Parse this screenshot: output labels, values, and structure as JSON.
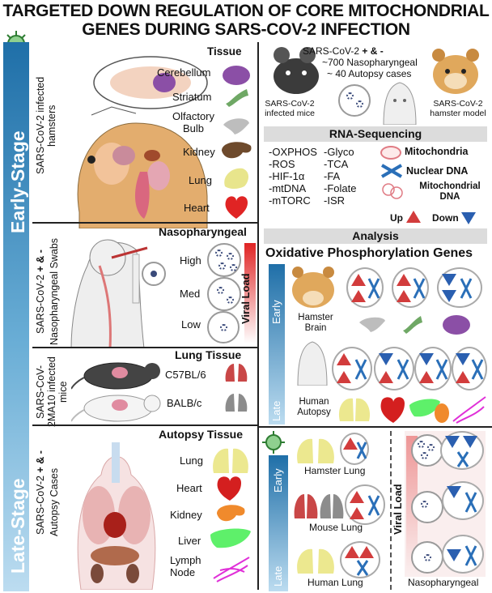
{
  "title": {
    "line1": "TARGETED DOWN REGULATION OF CORE MITOCHONDRIAL",
    "line2": "GENES DURING SARS-COV-2 INFECTION"
  },
  "stages": {
    "early": "Early-Stage",
    "late": "Late-Stage"
  },
  "left": {
    "hamsters": {
      "side_label": "SARS-CoV-2 infected hamsters",
      "header": "Tissue",
      "tissues": [
        "Cerebellum",
        "Striatum",
        "Olfactory Bulb",
        "Kidney",
        "Lung",
        "Heart"
      ]
    },
    "swabs": {
      "side_label_a": "SARS-CoV-2",
      "side_label_plus": "+ & -",
      "side_label_b": "Nasopharyngeal Swabs",
      "header": "Nasopharyngeal",
      "levels": [
        "High",
        "Med",
        "Low"
      ],
      "viral_load": "Viral Load"
    },
    "mice": {
      "side_label": "SARS-CoV-2MA10 infected mice",
      "header": "Lung Tissue",
      "strains": [
        "C57BL/6",
        "BALB/c"
      ]
    },
    "autopsy": {
      "side_label_a": "SARS-CoV-2",
      "side_label_plus": "+ & -",
      "side_label_b": "Autopsy Cases",
      "header": "Autopsy Tissue",
      "tissues": [
        "Lung",
        "Heart",
        "Kidney",
        "Liver",
        "Lymph Node"
      ]
    }
  },
  "right": {
    "top": {
      "line1a": "SARS-CoV-2",
      "line1b": "+ & -",
      "line2": "~700  Nasopharyngeal",
      "line3": "~ 40 Autopsy cases",
      "mice_label": "SARS-CoV-2 infected mice",
      "hamster_label": "SARS-CoV-2 hamster model"
    },
    "rnaseq": {
      "header": "RNA-Sequencing",
      "pathways_col1": [
        "-OXPHOS",
        "-ROS",
        "-HIF-1α",
        "-mtDNA",
        "-mTORC"
      ],
      "pathways_col2": [
        "-Glyco",
        "-TCA",
        "-FA",
        "-Folate",
        "-ISR"
      ],
      "legend_mito": "Mitochondria",
      "legend_nuclear": "Nuclear DNA",
      "legend_mtdna": "Mitochondrial DNA",
      "up": "Up",
      "down": "Down"
    },
    "analysis": {
      "header": "Analysis",
      "subheader": "Oxidative Phosphorylation Genes",
      "early": "Early",
      "late": "Late",
      "hamster_brain": "Hamster Brain",
      "human_autopsy": "Human Autopsy"
    },
    "bottom": {
      "early": "Early",
      "late": "Late",
      "hamster_lung": "Hamster Lung",
      "mouse_lung": "Mouse Lung",
      "human_lung": "Human Lung",
      "viral_load": "Viral Load",
      "nasopharyngeal": "Nasopharyngeal"
    }
  },
  "colors": {
    "stage_bar_top": "#1f6fa8",
    "up": "#d23c3c",
    "down": "#2a5fb0",
    "mito": "#e07b84",
    "nuclear_dna": "#2a6fb8"
  }
}
